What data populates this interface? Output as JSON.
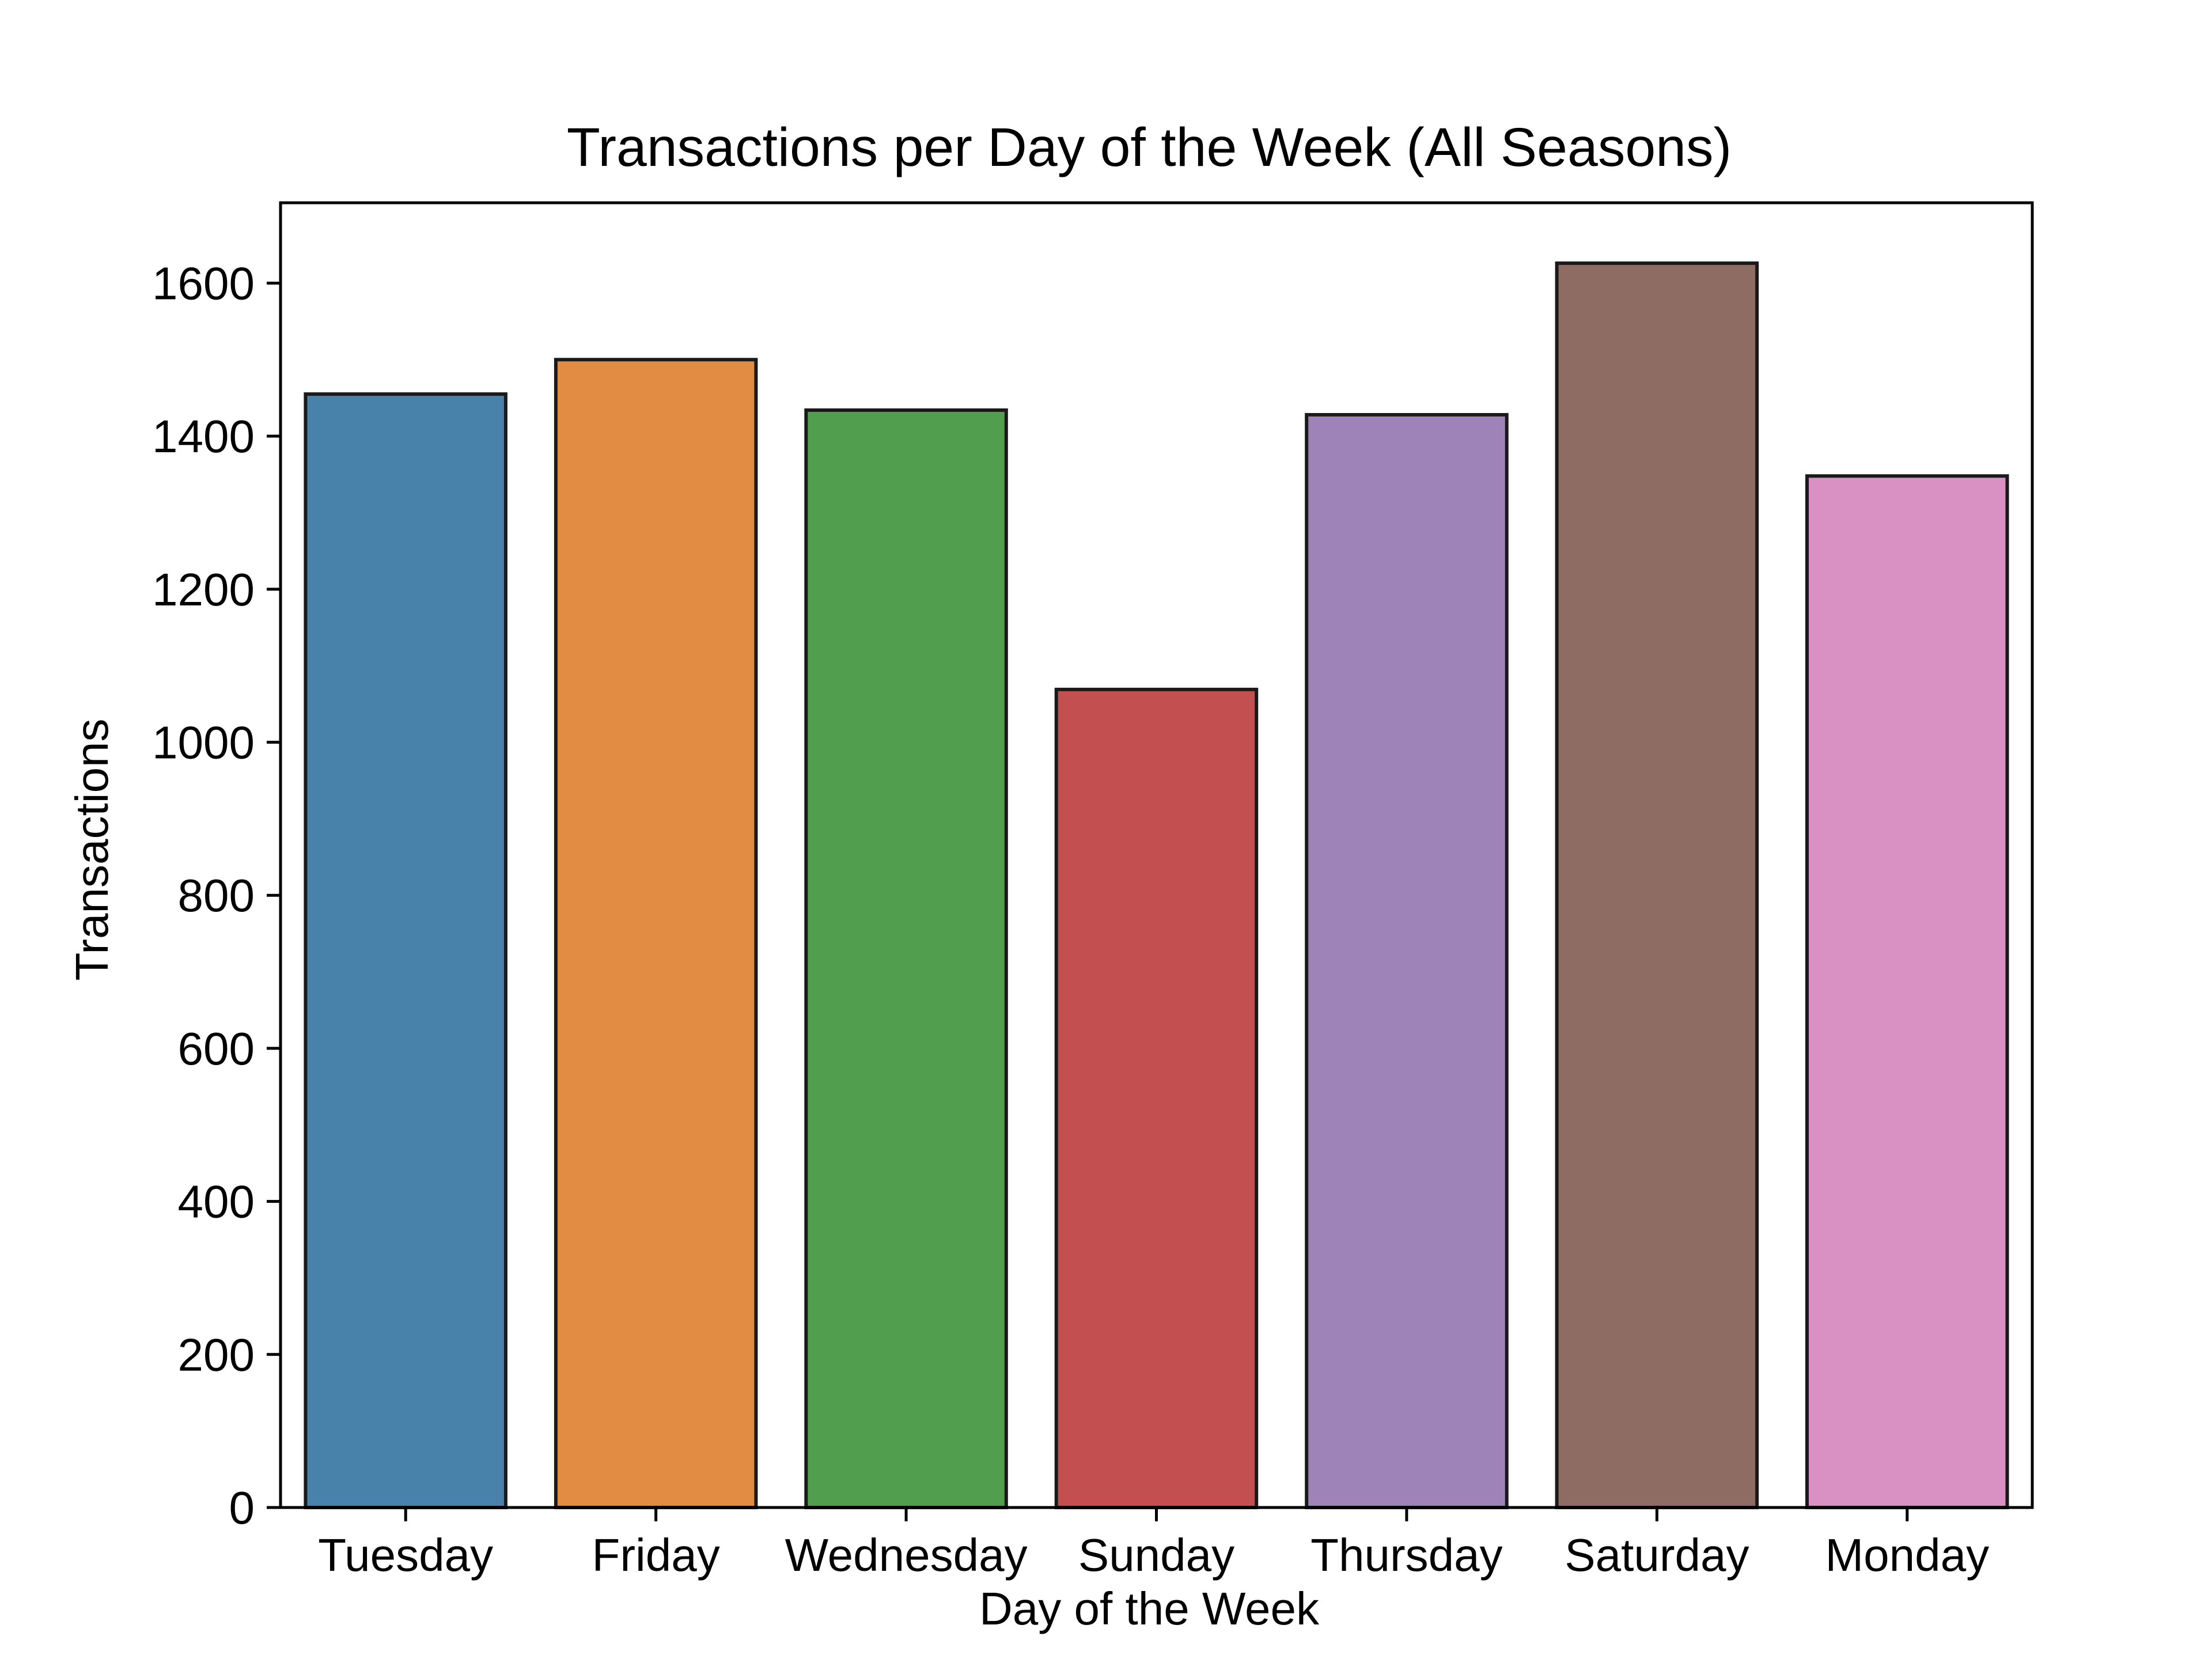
{
  "chart_data": {
    "type": "bar",
    "title": "Transactions per Day of the Week (All Seasons)",
    "xlabel": "Day of the Week",
    "ylabel": "Transactions",
    "categories": [
      "Tuesday",
      "Friday",
      "Wednesday",
      "Sunday",
      "Thursday",
      "Saturday",
      "Monday"
    ],
    "values": [
      1455,
      1500,
      1434,
      1069,
      1428,
      1626,
      1348
    ],
    "colors": [
      "#4882ab",
      "#e18c42",
      "#519e4e",
      "#c44f51",
      "#9e83b9",
      "#8e6c63",
      "#d991c3"
    ],
    "edge_color": "#1a1a1a",
    "ylim": [
      0,
      1705
    ],
    "yticks": [
      0,
      200,
      400,
      600,
      800,
      1000,
      1200,
      1400,
      1600
    ],
    "grid": false,
    "legend": "none"
  }
}
